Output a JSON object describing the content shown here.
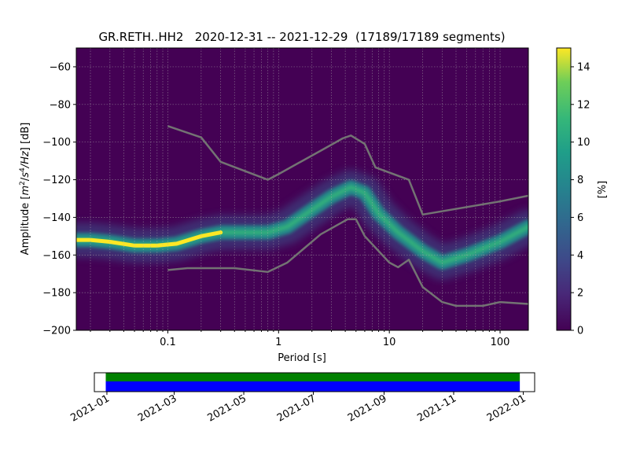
{
  "chart_data": [
    {
      "type": "heatmap",
      "title": "GR.RETH..HH2   2020-12-31 -- 2021-12-29  (17189/17189 segments)",
      "xlabel": "Period [s]",
      "ylabel_main": "Amplitude [",
      "ylabel_m": "m",
      "ylabel_m_exp": "2",
      "ylabel_slash": "/",
      "ylabel_s": "s",
      "ylabel_s_exp": "4",
      "ylabel_hz": "/Hz",
      "ylabel_end": "] [dB]",
      "x_scale": "log",
      "xlim": [
        0.0149,
        180
      ],
      "ylim": [
        -200,
        -50
      ],
      "x_ticks": [
        {
          "value": 0.1,
          "label": "0.1"
        },
        {
          "value": 1,
          "label": "1"
        },
        {
          "value": 10,
          "label": "10"
        },
        {
          "value": 100,
          "label": "100"
        }
      ],
      "y_ticks": [
        {
          "value": -60,
          "label": "−60"
        },
        {
          "value": -80,
          "label": "−80"
        },
        {
          "value": -100,
          "label": "−100"
        },
        {
          "value": -120,
          "label": "−120"
        },
        {
          "value": -140,
          "label": "−140"
        },
        {
          "value": -160,
          "label": "−160"
        },
        {
          "value": -180,
          "label": "−180"
        },
        {
          "value": -200,
          "label": "−200"
        }
      ],
      "grid": true,
      "colormap": "viridis",
      "colorbar": {
        "label": "[%]",
        "range": [
          0,
          15
        ],
        "ticks": [
          {
            "value": 0,
            "label": "0"
          },
          {
            "value": 2,
            "label": "2"
          },
          {
            "value": 4,
            "label": "4"
          },
          {
            "value": 6,
            "label": "6"
          },
          {
            "value": 8,
            "label": "8"
          },
          {
            "value": 10,
            "label": "10"
          },
          {
            "value": 12,
            "label": "12"
          },
          {
            "value": 14,
            "label": "14"
          }
        ]
      },
      "density_ridge": [
        {
          "period": 0.015,
          "amplitude": -152
        },
        {
          "period": 0.02,
          "amplitude": -152
        },
        {
          "period": 0.03,
          "amplitude": -153
        },
        {
          "period": 0.05,
          "amplitude": -155
        },
        {
          "period": 0.08,
          "amplitude": -155
        },
        {
          "period": 0.12,
          "amplitude": -154
        },
        {
          "period": 0.2,
          "amplitude": -150
        },
        {
          "period": 0.3,
          "amplitude": -148
        },
        {
          "period": 0.5,
          "amplitude": -148
        },
        {
          "period": 0.8,
          "amplitude": -148
        },
        {
          "period": 1.2,
          "amplitude": -145
        },
        {
          "period": 2,
          "amplitude": -136
        },
        {
          "period": 3,
          "amplitude": -129
        },
        {
          "period": 4.5,
          "amplitude": -124
        },
        {
          "period": 6,
          "amplitude": -127
        },
        {
          "period": 8,
          "amplitude": -138
        },
        {
          "period": 12,
          "amplitude": -148
        },
        {
          "period": 20,
          "amplitude": -158
        },
        {
          "period": 30,
          "amplitude": -164
        },
        {
          "period": 50,
          "amplitude": -160
        },
        {
          "period": 100,
          "amplitude": -153
        },
        {
          "period": 180,
          "amplitude": -145
        }
      ],
      "series": [
        {
          "x": [
            0.1,
            0.2,
            0.3,
            0.8,
            1.0,
            2.5,
            3.8,
            4.5,
            6.0,
            7.5,
            15.0,
            20.0,
            100.0,
            180.0
          ],
          "y": [
            -91.5,
            -97.5,
            -110.5,
            -120,
            -117,
            -104,
            -98,
            -96.5,
            -101,
            -113.5,
            -120,
            -138.5,
            -131.5,
            -128.5
          ]
        },
        {
          "x": [
            0.1,
            0.15,
            0.4,
            0.8,
            1.2,
            2.4,
            4.2,
            5.0,
            6.0,
            10.0,
            12.0,
            15.0,
            20.0,
            30.0,
            40.0,
            70.0,
            100.0,
            180.0
          ],
          "y": [
            -168,
            -167,
            -167,
            -169,
            -164,
            -149,
            -141,
            -141,
            -150,
            -164,
            -166.5,
            -162.5,
            -177,
            -185,
            -187,
            -187,
            -185,
            -186
          ]
        }
      ],
      "line_color": "#737373"
    },
    {
      "type": "bar",
      "xlim": [
        "2020-12-21",
        "2022-01-11"
      ],
      "x_ticks": [
        "2021-01",
        "2021-03",
        "2021-05",
        "2021-07",
        "2021-09",
        "2021-11",
        "2022-01"
      ],
      "bands": [
        {
          "start": "2020-12-31",
          "end": "2021-12-29",
          "color": "#008000"
        },
        {
          "start": "2020-12-31",
          "end": "2021-12-29",
          "color": "#0000ff"
        }
      ]
    }
  ]
}
